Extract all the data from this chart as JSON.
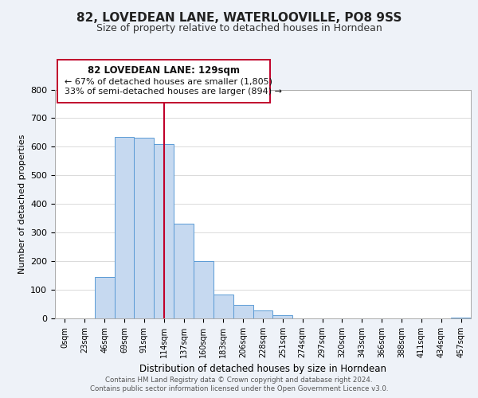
{
  "title": "82, LOVEDEAN LANE, WATERLOOVILLE, PO8 9SS",
  "subtitle": "Size of property relative to detached houses in Horndean",
  "xlabel": "Distribution of detached houses by size in Horndean",
  "ylabel": "Number of detached properties",
  "bar_color": "#c6d9f0",
  "bar_edge_color": "#5a9bd5",
  "highlight_color": "#c0002a",
  "background_color": "#eef2f8",
  "plot_background": "#ffffff",
  "bin_labels": [
    "0sqm",
    "23sqm",
    "46sqm",
    "69sqm",
    "91sqm",
    "114sqm",
    "137sqm",
    "160sqm",
    "183sqm",
    "206sqm",
    "228sqm",
    "251sqm",
    "274sqm",
    "297sqm",
    "320sqm",
    "343sqm",
    "366sqm",
    "388sqm",
    "411sqm",
    "434sqm",
    "457sqm"
  ],
  "counts": [
    0,
    0,
    145,
    635,
    632,
    610,
    332,
    200,
    84,
    46,
    27,
    12,
    0,
    0,
    0,
    0,
    0,
    0,
    0,
    0,
    4
  ],
  "property_bin_index": 5,
  "annotation_line1": "82 LOVEDEAN LANE: 129sqm",
  "annotation_line2": "← 67% of detached houses are smaller (1,805)",
  "annotation_line3": "33% of semi-detached houses are larger (894) →",
  "footer_line1": "Contains HM Land Registry data © Crown copyright and database right 2024.",
  "footer_line2": "Contains public sector information licensed under the Open Government Licence v3.0.",
  "ylim": [
    0,
    800
  ],
  "yticks": [
    0,
    100,
    200,
    300,
    400,
    500,
    600,
    700,
    800
  ]
}
